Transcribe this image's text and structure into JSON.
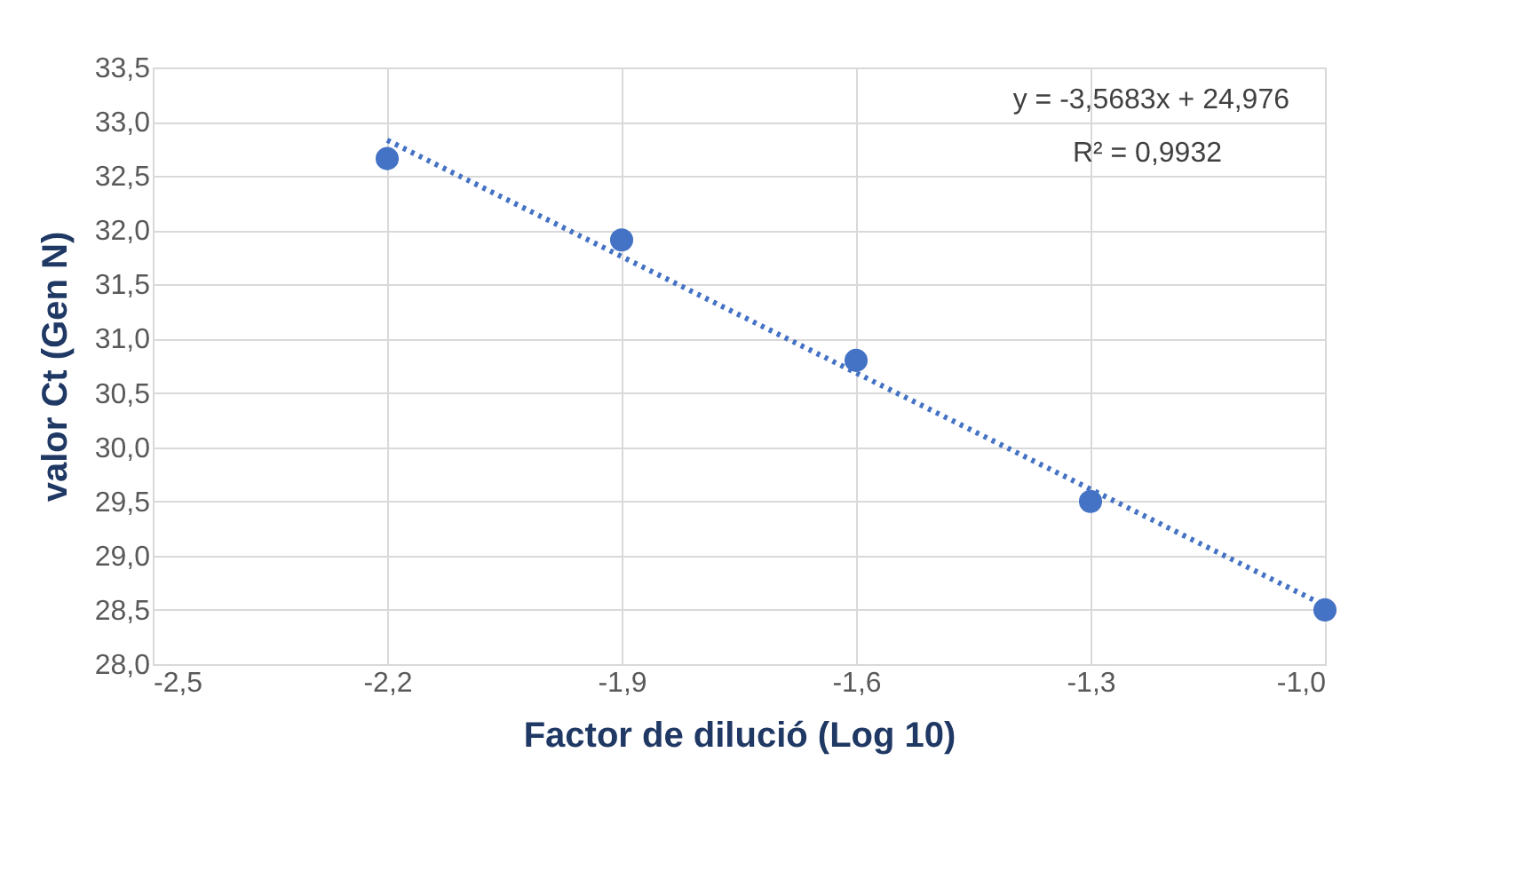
{
  "chart_data": {
    "type": "scatter",
    "xlabel": "Factor de dilució (Log 10)",
    "ylabel": "valor Ct (Gen N)",
    "x": [
      -2.2,
      -1.9,
      -1.6,
      -1.3,
      -1.0
    ],
    "series": [
      {
        "color": "#4472c4",
        "marker": "circle",
        "values": [
          32.66,
          31.91,
          30.8,
          29.5,
          28.5
        ]
      },
      {
        "type": "line",
        "color": "#4472c4",
        "line_style": "dotted",
        "x": [
          -2.2,
          -1.0
        ],
        "values": [
          32.83,
          28.54
        ]
      }
    ],
    "xlim": [
      -2.5,
      -1.0
    ],
    "xticks": [
      {
        "value": -2.5,
        "label": "-2,5"
      },
      {
        "value": -2.2,
        "label": "-2,2"
      },
      {
        "value": -1.9,
        "label": "-1,9"
      },
      {
        "value": -1.6,
        "label": "-1,6"
      },
      {
        "value": -1.3,
        "label": "-1,3"
      },
      {
        "value": -1.0,
        "label": "-1,0"
      }
    ],
    "ylim": [
      28.0,
      33.5
    ],
    "yticks": [
      {
        "value": 28.0,
        "label": "28,0"
      },
      {
        "value": 28.5,
        "label": "28,5"
      },
      {
        "value": 29.0,
        "label": "29,0"
      },
      {
        "value": 29.5,
        "label": "29,5"
      },
      {
        "value": 30.0,
        "label": "30,0"
      },
      {
        "value": 30.5,
        "label": "30,5"
      },
      {
        "value": 31.0,
        "label": "31,0"
      },
      {
        "value": 31.5,
        "label": "31,5"
      },
      {
        "value": 32.0,
        "label": "32,0"
      },
      {
        "value": 32.5,
        "label": "32,5"
      },
      {
        "value": 33.0,
        "label": "33,0"
      },
      {
        "value": 33.5,
        "label": "33,5"
      }
    ],
    "grid": true,
    "annotations": [
      "y = -3,5683x + 24,976",
      "R² = 0,9932"
    ]
  }
}
